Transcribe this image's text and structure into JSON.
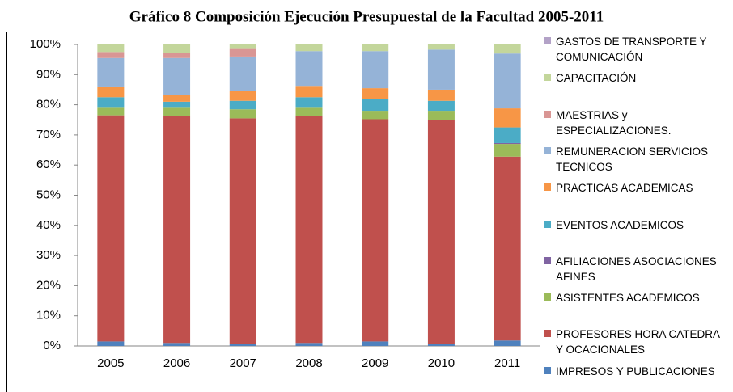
{
  "chart_data": {
    "type": "stacked_bar_100",
    "title": "Gráfico 8 Composición Ejecución Presupuestal de la Facultad 2005-2011",
    "categories": [
      "2005",
      "2006",
      "2007",
      "2008",
      "2009",
      "2010",
      "2011"
    ],
    "ylim": [
      0,
      100
    ],
    "yticks": [
      {
        "value": 0,
        "label": "0%"
      },
      {
        "value": 10,
        "label": "10%"
      },
      {
        "value": 20,
        "label": "20%"
      },
      {
        "value": 30,
        "label": "30%"
      },
      {
        "value": 40,
        "label": "40%"
      },
      {
        "value": 50,
        "label": "50%"
      },
      {
        "value": 60,
        "label": "60%"
      },
      {
        "value": 70,
        "label": "70%"
      },
      {
        "value": 80,
        "label": "80%"
      },
      {
        "value": 90,
        "label": "90%"
      },
      {
        "value": 100,
        "label": "100%"
      }
    ],
    "legend": "right",
    "series": [
      {
        "name": "IMPRESOS Y PUBLICACIONES",
        "color": "#4f81bd",
        "values": [
          1.5,
          1,
          0.7,
          1,
          1.5,
          0.7,
          1.8
        ]
      },
      {
        "name": "PROFESORES HORA CATEDRA Y OCACIONALES",
        "color": "#c0504d",
        "values": [
          75,
          75.3,
          74.8,
          75.3,
          73.7,
          74.1,
          61
        ]
      },
      {
        "name": "ASISTENTES ACADEMICOS",
        "color": "#9bbb59",
        "values": [
          2.5,
          2.7,
          3,
          2.7,
          2.8,
          3.2,
          4.2
        ]
      },
      {
        "name": "AFILIACIONES ASOCIACIONES AFINES",
        "color": "#8064a2",
        "values": [
          0,
          0,
          0,
          0,
          0,
          0,
          0.3
        ]
      },
      {
        "name": "EVENTOS ACADEMICOS",
        "color": "#4bacc6",
        "values": [
          3.5,
          2,
          2.8,
          3.5,
          3.8,
          3.3,
          5.2
        ]
      },
      {
        "name": "PRACTICAS ACADEMICAS",
        "color": "#f79646",
        "values": [
          3.3,
          2.3,
          3.2,
          3.5,
          3.7,
          3.7,
          6.3
        ]
      },
      {
        "name": "REMUNERACION SERVICIOS TECNICOS",
        "color": "#95b3d7",
        "values": [
          9.7,
          12.2,
          11.5,
          11.8,
          12.3,
          13.3,
          18.2
        ]
      },
      {
        "name": "MAESTRIAS  y ESPECIALIZACIONES.",
        "color": "#d99694",
        "values": [
          2,
          1.8,
          2.5,
          0,
          0,
          0,
          0
        ]
      },
      {
        "name": "CAPACITACIÓN",
        "color": "#c3d69b",
        "values": [
          2.5,
          2.7,
          1.5,
          2.2,
          2.2,
          1.7,
          3
        ]
      },
      {
        "name": "GASTOS DE TRANSPORTE Y COMUNICACIÓN",
        "color": "#b3a2c7",
        "values": [
          0,
          0,
          0,
          0,
          0,
          0,
          0
        ]
      }
    ]
  }
}
